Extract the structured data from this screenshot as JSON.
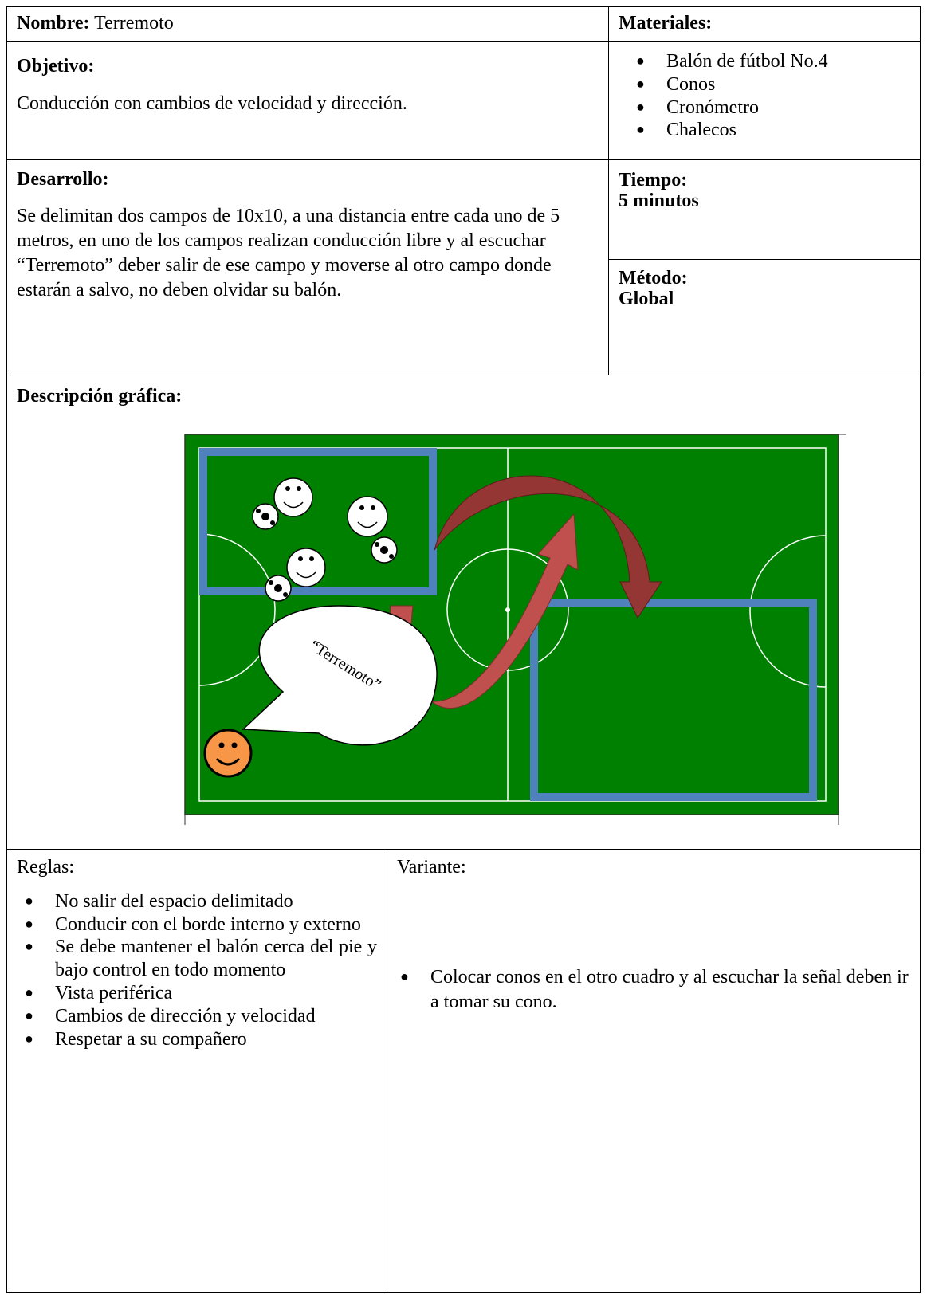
{
  "nombre": {
    "label": "Nombre:",
    "value": "Terremoto"
  },
  "materiales": {
    "label": "Materiales:",
    "items": [
      "Balón de fútbol No.4",
      "Conos",
      "Cronómetro",
      " Chalecos"
    ]
  },
  "objetivo": {
    "label": "Objetivo:",
    "text": "Conducción con cambios de velocidad y dirección."
  },
  "desarrollo": {
    "label": "Desarrollo:",
    "text": "Se delimitan dos campos de 10x10, a una distancia entre cada uno de 5 metros, en uno de los campos realizan conducción libre y al escuchar “Terremoto” deber salir de ese campo y moverse al otro campo donde estarán a salvo, no deben olvidar su balón."
  },
  "tiempo": {
    "label": "Tiempo:",
    "value": "5 minutos"
  },
  "metodo": {
    "label": "Método:",
    "value": "Global"
  },
  "descripcion": {
    "label": "Descripción gráfica:",
    "speech": "“Terremoto”"
  },
  "reglas": {
    "label": "Reglas:",
    "items": [
      "No salir del espacio delimitado",
      "Conducir con el borde interno y externo",
      "Se debe mantener el balón cerca del pie y bajo control en todo momento",
      "Vista periférica",
      "Cambios de dirección y velocidad",
      "Respetar a su compañero"
    ]
  },
  "variante": {
    "label": "Variante:",
    "items": [
      "Colocar conos en el otro cuadro y al escuchar la señal deben ir a tomar su cono."
    ]
  }
}
